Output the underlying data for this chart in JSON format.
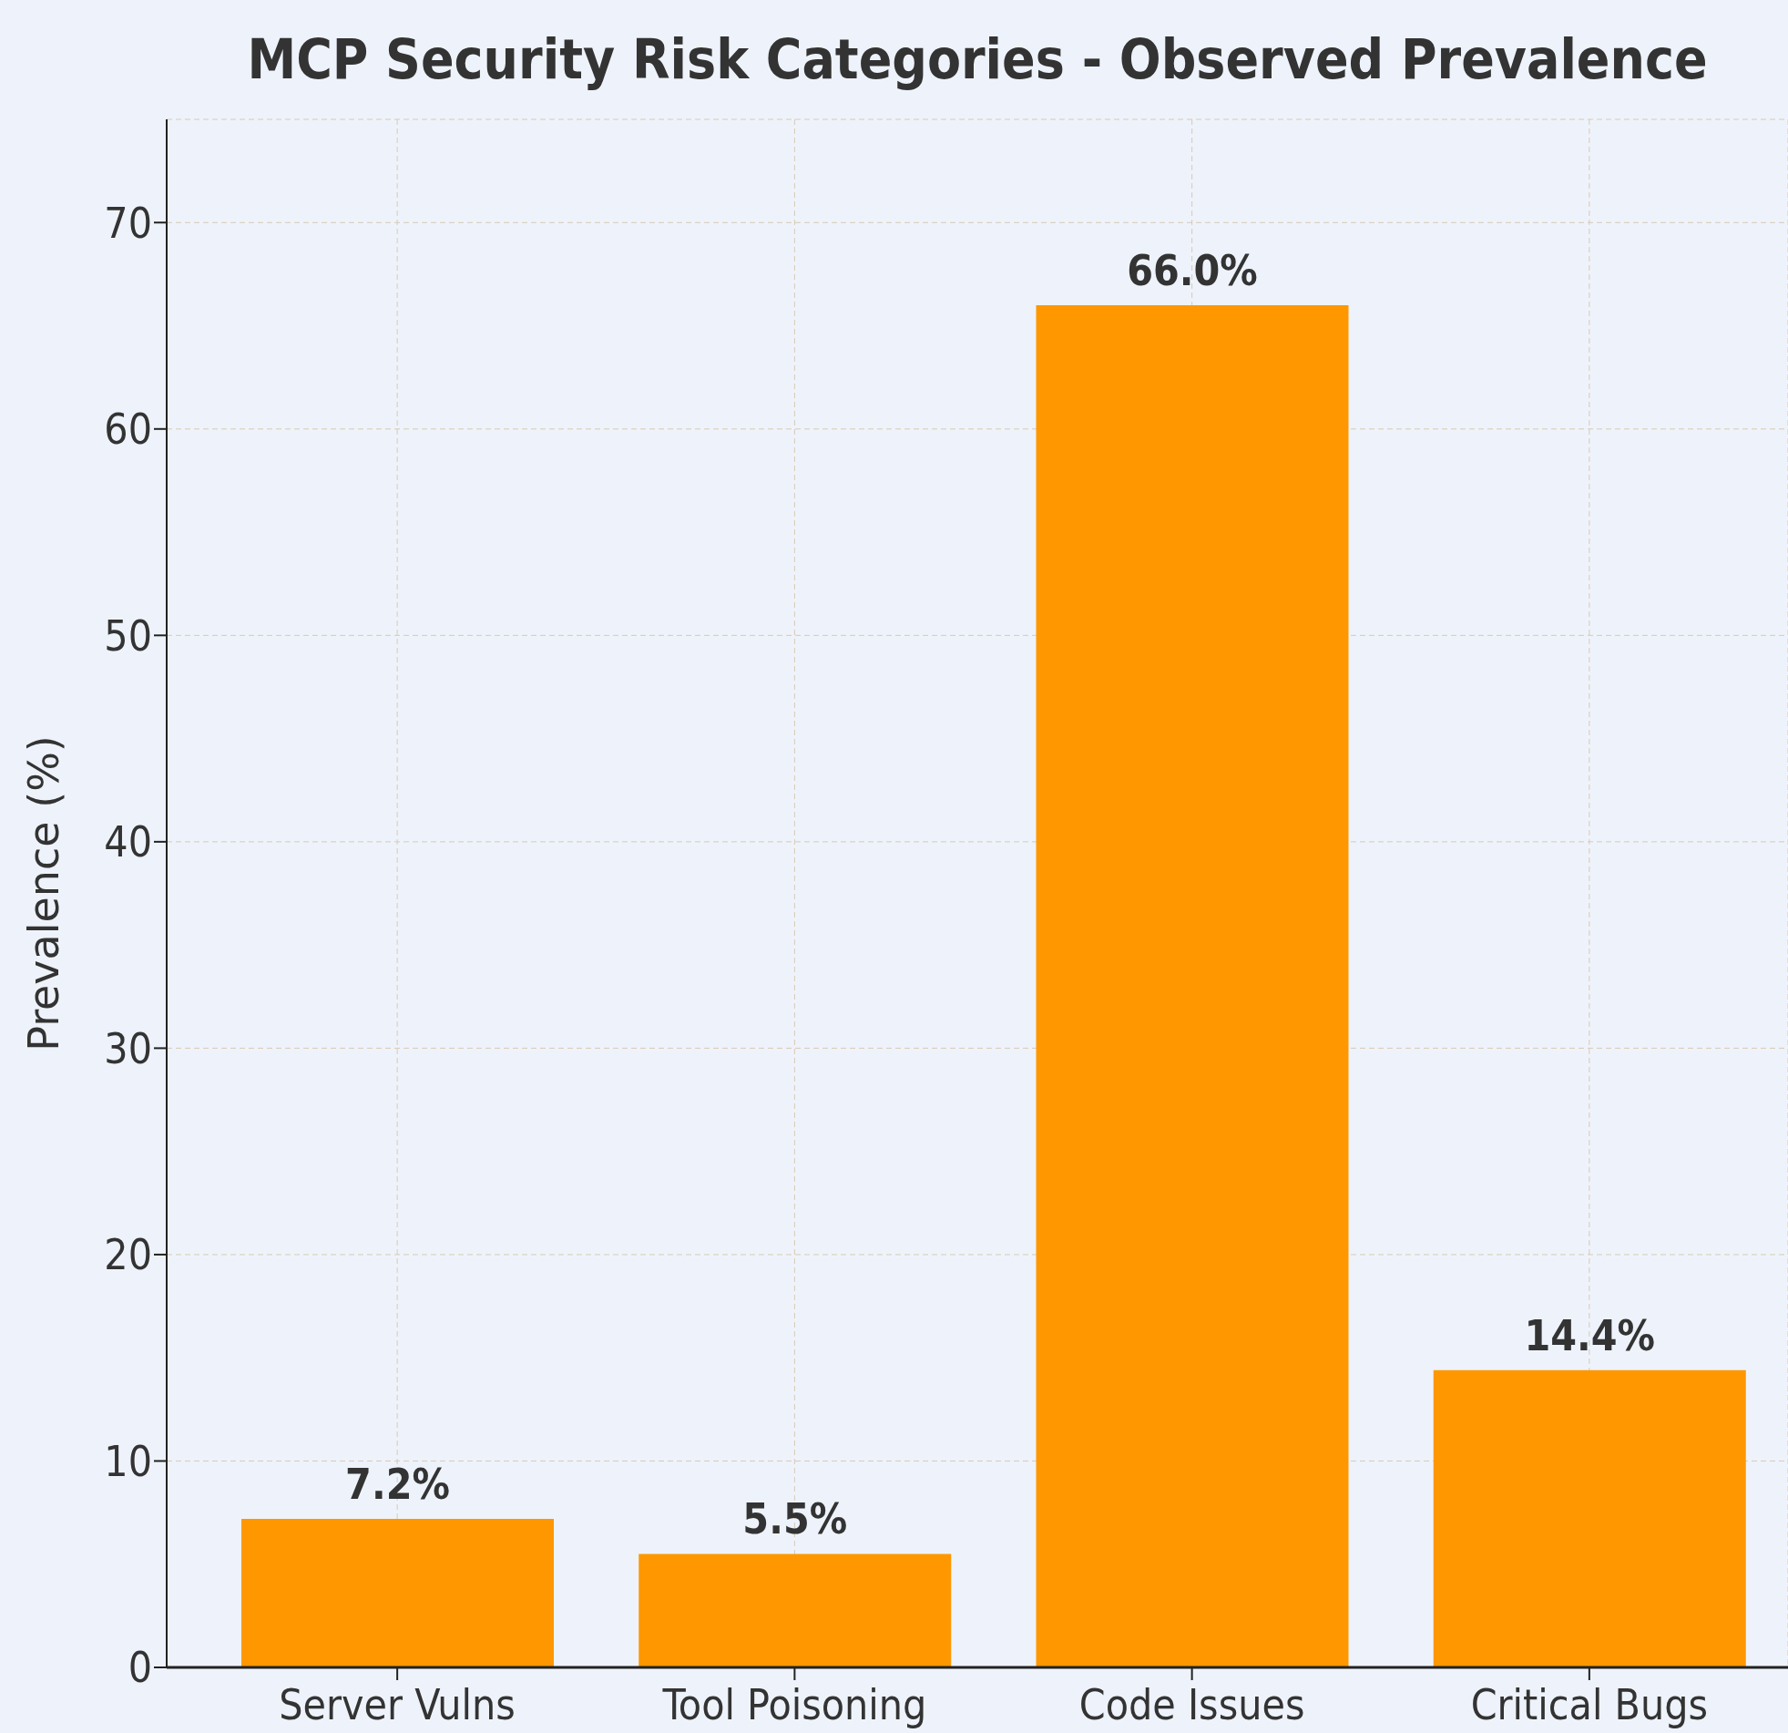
{
  "chart_data": {
    "type": "bar",
    "title": "MCP Security Risk Categories - Observed Prevalence",
    "ylabel": "Prevalence (%)",
    "categories": [
      "Server Vulns",
      "Tool Poisoning",
      "Code Issues",
      "Critical Bugs"
    ],
    "values": [
      7.2,
      5.5,
      66.0,
      14.4
    ],
    "value_labels": [
      "7.2%",
      "5.5%",
      "66.0%",
      "14.4%"
    ],
    "color": "#fe9700",
    "ylim": [
      0,
      75
    ],
    "yticks": [
      0,
      10,
      20,
      30,
      40,
      50,
      60,
      70
    ],
    "grid": true,
    "legend": false
  }
}
